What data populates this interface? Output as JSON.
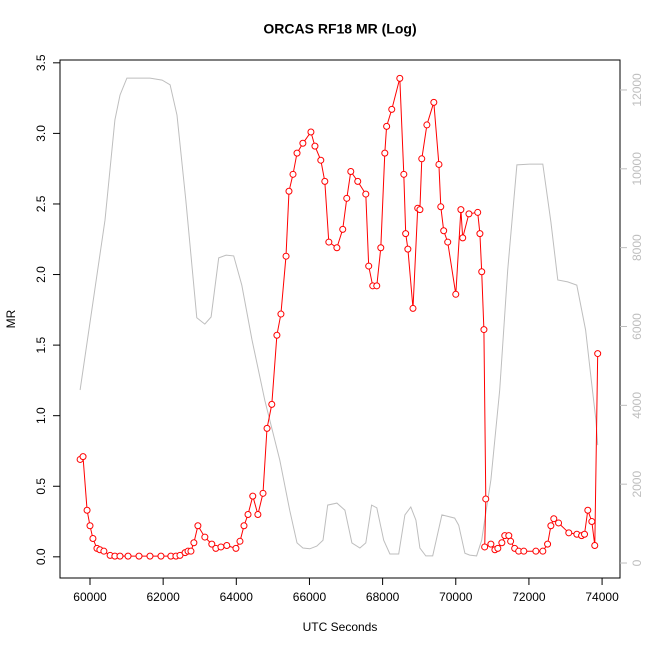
{
  "chart_data": {
    "type": "line",
    "title": "ORCAS RF18 MR (Log)",
    "x_label": "UTC Seconds",
    "y_label": "MR",
    "xlim": [
      59180,
      74490
    ],
    "xticks": [
      60000,
      62000,
      64000,
      66000,
      68000,
      70000,
      72000,
      74000
    ],
    "ylim": [
      -0.15,
      3.52
    ],
    "yticks": [
      {
        "value": 0,
        "label": "0.0"
      },
      0.5,
      {
        "value": 1,
        "label": "1.0"
      },
      1.5,
      {
        "value": 2,
        "label": "2.0"
      },
      2.5,
      {
        "value": 3,
        "label": "3.0"
      },
      3.5
    ],
    "y2lim": [
      -380,
      12760
    ],
    "y2ticks": [
      0,
      2000,
      4000,
      6000,
      8000,
      10000,
      12000
    ],
    "y2_color": "#bebebe",
    "series": [
      {
        "color": "#bebebe",
        "axis": "y2",
        "marker": "none",
        "x": [
          59730,
          60410,
          60680,
          60820,
          61010,
          61640,
          61970,
          62190,
          62380,
          62620,
          62920,
          63140,
          63310,
          63520,
          63720,
          63930,
          64150,
          64430,
          64780,
          65190,
          65460,
          65660,
          65820,
          66010,
          66200,
          66370,
          66500,
          66750,
          66970,
          67160,
          67380,
          67540,
          67700,
          67840,
          68030,
          68200,
          68440,
          68610,
          68770,
          68910,
          69020,
          69180,
          69370,
          69620,
          69970,
          70080,
          70250,
          70380,
          70570,
          70710,
          70790,
          70960,
          71200,
          71420,
          71670,
          72020,
          72380,
          72600,
          72790,
          73060,
          73310,
          73550,
          73690,
          73830,
          73880
        ],
        "values": [
          4390,
          8700,
          11240,
          11870,
          12300,
          12300,
          12250,
          12130,
          11360,
          9210,
          6220,
          6060,
          6240,
          7740,
          7810,
          7790,
          7050,
          5660,
          4130,
          2610,
          1340,
          510,
          380,
          360,
          430,
          580,
          1470,
          1520,
          1340,
          510,
          380,
          510,
          1470,
          1400,
          580,
          230,
          230,
          1220,
          1420,
          1090,
          380,
          180,
          180,
          1220,
          1140,
          960,
          250,
          200,
          180,
          580,
          1090,
          2110,
          4390,
          7430,
          10100,
          10120,
          10120,
          8650,
          7180,
          7130,
          7050,
          5910,
          4770,
          3630,
          2990
        ]
      },
      {
        "color": "#ff0000",
        "axis": "y",
        "marker": "circle",
        "x": [
          59730,
          59810,
          59920,
          60000,
          60080,
          60190,
          60270,
          60380,
          60550,
          60680,
          60820,
          61040,
          61340,
          61640,
          61940,
          62210,
          62350,
          62460,
          62600,
          62680,
          62760,
          62840,
          62950,
          63140,
          63330,
          63440,
          63580,
          63740,
          63990,
          64100,
          64210,
          64320,
          64450,
          64590,
          64730,
          64840,
          64970,
          65110,
          65220,
          65360,
          65440,
          65550,
          65660,
          65820,
          66040,
          66150,
          66310,
          66420,
          66530,
          66750,
          66910,
          67020,
          67130,
          67320,
          67540,
          67620,
          67730,
          67840,
          67950,
          68060,
          68110,
          68250,
          68470,
          68580,
          68630,
          68690,
          68830,
          68960,
          69020,
          69070,
          69210,
          69400,
          69540,
          69590,
          69670,
          69780,
          70000,
          70140,
          70190,
          70360,
          70600,
          70660,
          70710,
          70770,
          70820,
          70790,
          70960,
          71070,
          71150,
          71260,
          71340,
          71450,
          71500,
          71610,
          71720,
          71860,
          72190,
          72380,
          72510,
          72600,
          72680,
          72810,
          73090,
          73310,
          73440,
          73520,
          73610,
          73720,
          73800,
          73880
        ],
        "values": [
          0.69,
          0.71,
          0.33,
          0.22,
          0.13,
          0.06,
          0.05,
          0.04,
          0.01,
          0.005,
          0.005,
          0.005,
          0.005,
          0.005,
          0.005,
          0.005,
          0.005,
          0.01,
          0.03,
          0.04,
          0.04,
          0.1,
          0.22,
          0.14,
          0.09,
          0.06,
          0.07,
          0.08,
          0.06,
          0.11,
          0.22,
          0.3,
          0.43,
          0.3,
          0.45,
          0.91,
          1.08,
          1.57,
          1.72,
          2.13,
          2.59,
          2.71,
          2.86,
          2.93,
          3.01,
          2.91,
          2.81,
          2.66,
          2.23,
          2.19,
          2.32,
          2.54,
          2.73,
          2.66,
          2.57,
          2.06,
          1.92,
          1.92,
          2.19,
          2.86,
          3.05,
          3.17,
          3.39,
          2.71,
          2.29,
          2.18,
          1.76,
          2.47,
          2.46,
          2.82,
          3.06,
          3.22,
          2.78,
          2.48,
          2.31,
          2.23,
          1.86,
          2.46,
          2.26,
          2.43,
          2.44,
          2.29,
          2.02,
          1.61,
          0.41,
          0.07,
          0.09,
          0.05,
          0.06,
          0.1,
          0.15,
          0.15,
          0.11,
          0.06,
          0.04,
          0.04,
          0.04,
          0.04,
          0.09,
          0.22,
          0.27,
          0.24,
          0.17,
          0.16,
          0.15,
          0.16,
          0.33,
          0.25,
          0.08,
          1.44
        ]
      }
    ]
  }
}
